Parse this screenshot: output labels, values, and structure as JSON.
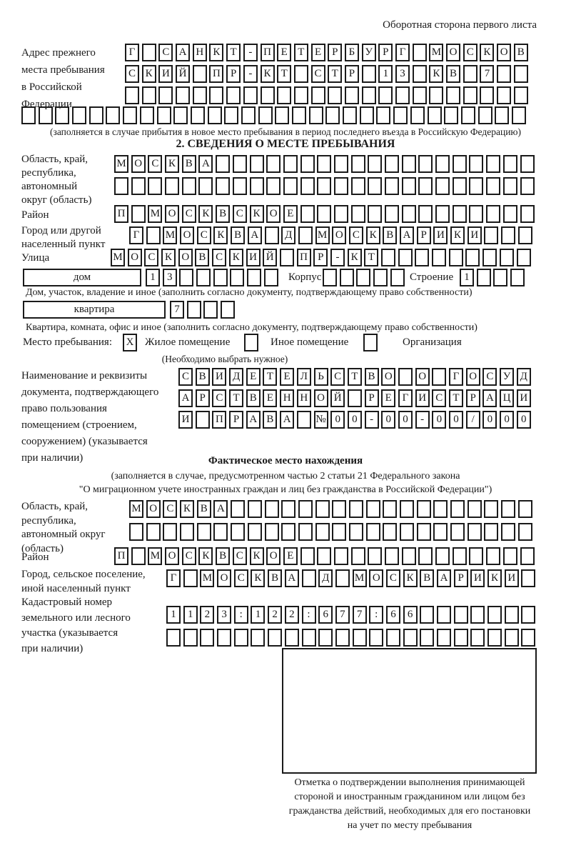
{
  "header": {
    "note": "Оборотная сторона первого листа"
  },
  "prev_address": {
    "label_lines": [
      "Адрес прежнего",
      "места пребывания",
      "в Российской",
      "Федерации"
    ],
    "line1": {
      "text": "Г САНКТ-ПЕТЕРБУРГ МОСКОВ",
      "count": 24
    },
    "line2": {
      "text": "СКИЙ ПР-КТ СТР 13 КВ 7",
      "count": 24
    },
    "line3": {
      "text": "",
      "count": 24
    },
    "line4": {
      "text": "",
      "count": 30
    },
    "note": "(заполняется в случае прибытия в новое место пребывания в период последнего въезда в Российскую Федерацию)"
  },
  "section2": {
    "title": "2. СВЕДЕНИЯ О МЕСТЕ ПРЕБЫВАНИЯ",
    "region": {
      "label_lines": [
        "Область, край,",
        "республика,",
        "автономный",
        "округ (область)"
      ],
      "line1": {
        "text": "МОСКВА",
        "count": 25
      },
      "line2": {
        "text": "",
        "count": 25
      }
    },
    "district": {
      "label": "Район",
      "line1": {
        "text": "П МОСКВСКОЕ",
        "count": 25
      }
    },
    "city": {
      "label_lines": [
        "Город или другой",
        "населенный пункт"
      ],
      "line1": {
        "text": "Г МОСКВА Д МОСКВАРИКИ",
        "count": 24
      }
    },
    "street": {
      "label": "Улица",
      "line1": {
        "text": "МОСКОВСКИЙ ПР-КТ",
        "count": 25
      }
    },
    "house": {
      "label": "дом",
      "cells": {
        "text": "13",
        "count": 8
      }
    },
    "korpus": {
      "label": "Корпус",
      "cells": {
        "text": "",
        "count": 5
      }
    },
    "stroenie": {
      "label": "Строение",
      "cells": {
        "text": "1",
        "count": 4
      }
    },
    "house_note": "Дом, участок, владение и иное (заполнить согласно документу, подтверждающему право собственности)",
    "apartment": {
      "label": "квартира",
      "cells": {
        "text": "7",
        "count": 4
      }
    },
    "apartment_note": "Квартира, комната, офис и иное (заполнить согласно документу, подтверждающему право собственности)",
    "stay_type": {
      "label": "Место пребывания:",
      "options": [
        {
          "label": "Жилое помещение",
          "box": {
            "text": "X",
            "count": 1
          }
        },
        {
          "label": "Иное помещение",
          "box": {
            "text": "",
            "count": 1
          }
        },
        {
          "label": "Организация",
          "box": {
            "text": "",
            "count": 1
          }
        }
      ],
      "note": "(Необходимо выбрать нужное)"
    },
    "document": {
      "label_lines": [
        "Наименование и реквизиты",
        "документа, подтверждающего",
        "право пользования",
        "помещением (строением,",
        "сооружением) (указывается",
        "при наличии)"
      ],
      "line1": {
        "text": "СВИДЕТЕЛЬСТВО О ГОСУД",
        "count": 21
      },
      "line2": {
        "text": "АРСТВЕННОЙ РЕГИСТРАЦИ",
        "count": 21
      },
      "line3": {
        "text": "И ПРАВА №00-00-00/000",
        "count": 21
      }
    }
  },
  "actual_location": {
    "title": "Фактическое место нахождения",
    "note_lines": [
      "(заполняется в случае, предусмотренном частью 2 статьи 21 Федерального закона",
      "\"О миграционном учете иностранных граждан и лиц без гражданства в Российской Федерации\")"
    ],
    "region": {
      "label_lines": [
        "Область, край,",
        "республика,",
        "автономный округ",
        "(область)"
      ],
      "line1": {
        "text": "МОСКВА",
        "count": 24
      },
      "line2": {
        "text": "",
        "count": 24
      }
    },
    "district": {
      "label": "Район",
      "line1": {
        "text": "П МОСКВСКОЕ",
        "count": 25
      }
    },
    "city": {
      "label_lines": [
        "Город, сельское поселение,",
        "иной населенный пункт"
      ],
      "line1": {
        "text": "Г МОСКВА Д МОСКВАРИКИ",
        "count": 22
      }
    },
    "cadastre": {
      "label_lines": [
        "Кадастровый номер",
        "земельного или лесного",
        "участка (указывается",
        "при наличии)"
      ],
      "line1": {
        "text": "1123:122:677:66",
        "count": 22
      },
      "line2": {
        "text": "",
        "count": 22
      }
    },
    "stamp_caption_lines": [
      "Отметка о подтверждении выполнения принимающей",
      "стороной и иностранным гражданином или лицом без",
      "гражданства действий, необходимых для его постановки",
      "на учет по месту пребывания"
    ]
  },
  "colors": {
    "ink": "#1a1a1a",
    "paper": "#ffffff"
  }
}
